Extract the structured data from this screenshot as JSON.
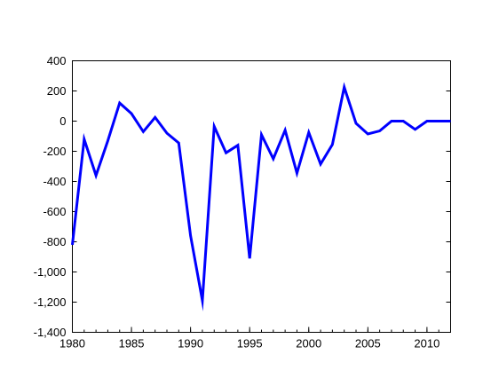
{
  "chart_data": {
    "type": "line",
    "title": "",
    "xlabel": "",
    "ylabel": "",
    "xlim": [
      1980,
      2012
    ],
    "ylim": [
      -1400,
      400
    ],
    "grid": false,
    "legend": "none",
    "x_ticks": [
      1980,
      1985,
      1990,
      1995,
      2000,
      2005,
      2010
    ],
    "x_tick_labels": [
      "1980",
      "1985",
      "1990",
      "1995",
      "2000",
      "2005",
      "2010"
    ],
    "y_ticks": [
      400,
      200,
      0,
      -200,
      -400,
      -600,
      -800,
      -1000,
      -1200,
      -1400
    ],
    "y_tick_labels": [
      "400",
      "200",
      "0",
      "-200",
      "-400",
      "-600",
      "-800",
      "-1,000",
      "-1,200",
      "-1,400"
    ],
    "series": [
      {
        "color": "#0000ff",
        "x": [
          1980,
          1981,
          1982,
          1983,
          1984,
          1985,
          1986,
          1987,
          1988,
          1989,
          1990,
          1991,
          1992,
          1993,
          1994,
          1995,
          1996,
          1997,
          1998,
          1999,
          2000,
          2001,
          2002,
          2003,
          2004,
          2005,
          2006,
          2007,
          2008,
          2009,
          2010,
          2011,
          2012
        ],
        "values": [
          -820,
          -120,
          -360,
          -130,
          120,
          50,
          -70,
          25,
          -80,
          -145,
          -760,
          -1190,
          -35,
          -210,
          -160,
          -910,
          -90,
          -250,
          -60,
          -345,
          -75,
          -285,
          -155,
          225,
          -15,
          -85,
          -65,
          0,
          0,
          -55,
          0,
          0,
          0
        ]
      }
    ]
  }
}
